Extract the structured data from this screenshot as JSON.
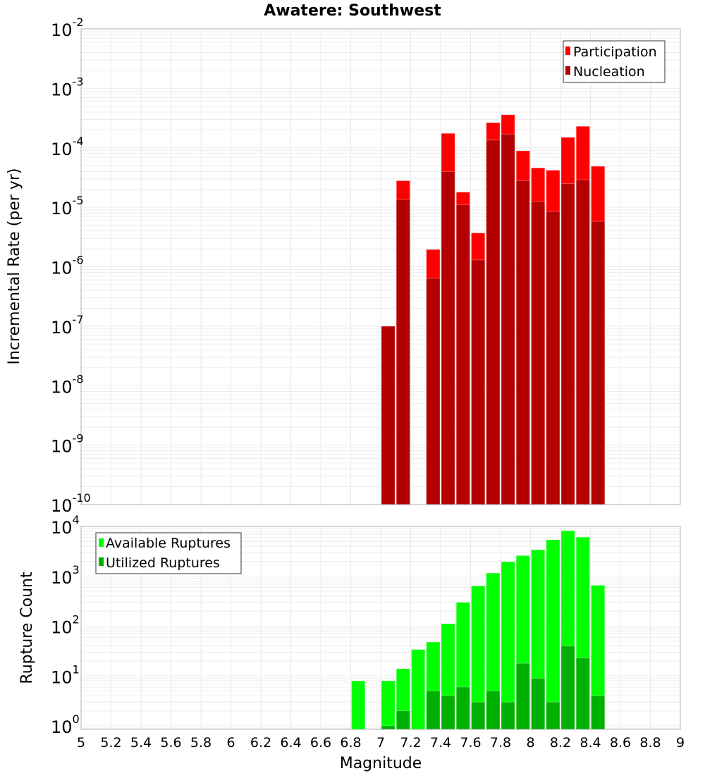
{
  "title": "Awatere: Southwest",
  "xlabel": "Magnitude",
  "x_tick_labels": [
    "5",
    "5.2",
    "5.4",
    "5.6",
    "5.8",
    "6",
    "6.2",
    "6.4",
    "6.6",
    "6.8",
    "7",
    "7.2",
    "7.4",
    "7.6",
    "7.8",
    "8",
    "8.2",
    "8.4",
    "8.6",
    "8.8",
    "9"
  ],
  "colors": {
    "participation": "#ff0000",
    "nucleation": "#b30000",
    "available": "#00ff00",
    "utilized": "#00b000",
    "grid": "#e8e8e8",
    "frame": "#b0b0b0"
  },
  "chart_data": [
    {
      "type": "bar",
      "title": "Awatere: Southwest",
      "xlabel": "Magnitude",
      "ylabel": "Incremental Rate (per yr)",
      "yscale": "log",
      "xlim": [
        5,
        9
      ],
      "ylim": [
        1e-10,
        0.01
      ],
      "y_tick_labels": [
        {
          "base": "10",
          "exp": "-2"
        },
        {
          "base": "10",
          "exp": "-3"
        },
        {
          "base": "10",
          "exp": "-4"
        },
        {
          "base": "10",
          "exp": "-5"
        },
        {
          "base": "10",
          "exp": "-6"
        },
        {
          "base": "10",
          "exp": "-7"
        },
        {
          "base": "10",
          "exp": "-8"
        },
        {
          "base": "10",
          "exp": "-9"
        },
        {
          "base": "10",
          "exp": "-10"
        }
      ],
      "grid": true,
      "legend_position": "top-right",
      "x": [
        7.05,
        7.15,
        7.35,
        7.45,
        7.55,
        7.65,
        7.75,
        7.85,
        7.95,
        8.05,
        8.15,
        8.25,
        8.35,
        8.45
      ],
      "series": [
        {
          "name": "Participation",
          "values": [
            1e-07,
            2.8e-05,
            1.95e-06,
            0.000175,
            1.8e-05,
            3.7e-06,
            0.000265,
            0.00036,
            8.9e-05,
            4.6e-05,
            4.2e-05,
            0.00015,
            0.00023,
            4.9e-05
          ]
        },
        {
          "name": "Nucleation",
          "values": [
            1e-07,
            1.35e-05,
            6.4e-07,
            4e-05,
            1.1e-05,
            1.3e-06,
            0.000135,
            0.00017,
            2.8e-05,
            1.25e-05,
            8.5e-06,
            2.5e-05,
            2.9e-05,
            5.8e-06
          ]
        }
      ]
    },
    {
      "type": "bar",
      "xlabel": "Magnitude",
      "ylabel": "Rupture Count",
      "yscale": "log",
      "xlim": [
        5,
        9
      ],
      "ylim": [
        0.85,
        10000
      ],
      "y_tick_labels": [
        {
          "base": "10",
          "exp": "4"
        },
        {
          "base": "10",
          "exp": "3"
        },
        {
          "base": "10",
          "exp": "2"
        },
        {
          "base": "10",
          "exp": "1"
        },
        {
          "base": "10",
          "exp": "0"
        }
      ],
      "grid": true,
      "legend_position": "top-left",
      "x": [
        6.85,
        7.05,
        7.15,
        7.25,
        7.35,
        7.45,
        7.55,
        7.65,
        7.75,
        7.85,
        7.95,
        8.05,
        8.15,
        8.25,
        8.35,
        8.45
      ],
      "series": [
        {
          "name": "Available Ruptures",
          "values": [
            8,
            8,
            14,
            34,
            48,
            112,
            300,
            640,
            1160,
            1950,
            2600,
            3400,
            5400,
            8200,
            6100,
            660
          ]
        },
        {
          "name": "Utilized Ruptures",
          "values": [
            0,
            1,
            2,
            0,
            5,
            4,
            6,
            3,
            5,
            3,
            18,
            9,
            3,
            40,
            23,
            4
          ]
        }
      ]
    }
  ]
}
